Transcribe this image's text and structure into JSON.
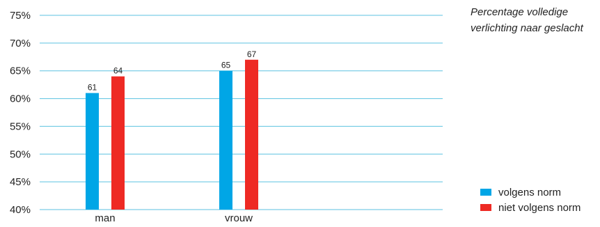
{
  "chart_data": {
    "type": "bar",
    "title": "Percentage volledige verlichting naar geslacht",
    "categories": [
      "man",
      "vrouw"
    ],
    "series": [
      {
        "name": "volgens norm",
        "values": [
          61,
          65
        ],
        "color": "#00a6e6"
      },
      {
        "name": "niet volgens norm",
        "values": [
          64,
          67
        ],
        "color": "#ee2a24"
      }
    ],
    "ylim": [
      40,
      75
    ],
    "yticks": [
      "40%",
      "45%",
      "50%",
      "55%",
      "60%",
      "65%",
      "70%",
      "75%"
    ],
    "grid": true,
    "legend_position": "bottom-right",
    "xlabel": "",
    "ylabel": ""
  }
}
